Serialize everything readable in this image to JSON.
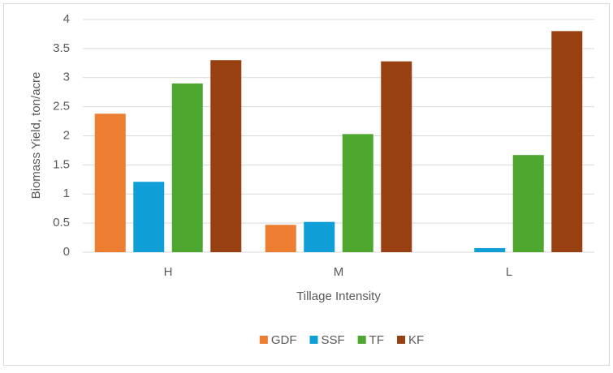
{
  "chart_data": {
    "type": "bar",
    "x_label": "Tillage Intensity",
    "y_label": "Biomass Yield, ton/acre",
    "categories": [
      "H",
      "M",
      "L"
    ],
    "series": [
      {
        "name": "GDF",
        "color": "#ed7d31",
        "values": [
          2.38,
          0.47,
          0
        ]
      },
      {
        "name": "SSF",
        "color": "#0f9ed5",
        "values": [
          1.21,
          0.52,
          0.07
        ]
      },
      {
        "name": "TF",
        "color": "#4ea72e",
        "values": [
          2.9,
          2.03,
          1.67
        ]
      },
      {
        "name": "KF",
        "color": "#984012",
        "values": [
          3.3,
          3.28,
          3.8
        ]
      }
    ],
    "ylim": [
      0,
      4
    ],
    "yticks": [
      0,
      0.5,
      1,
      1.5,
      2,
      2.5,
      3,
      3.5,
      4
    ],
    "grid": true,
    "legend": "bottom"
  }
}
